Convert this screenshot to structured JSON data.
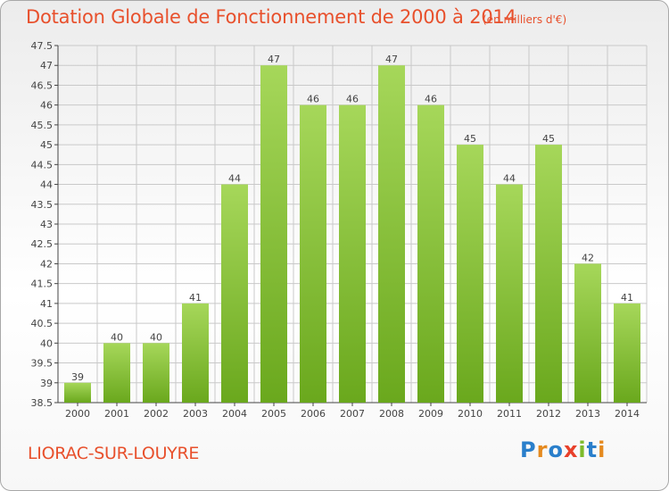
{
  "header": {
    "title": "Dotation Globale de Fonctionnement de 2000 à 2014",
    "unit": "(en milliers d'€)"
  },
  "footer": {
    "commune": "LIORAC-SUR-LOUYRE",
    "logo": "Proxiti"
  },
  "colors": {
    "title": "#e8502c",
    "bar_light": "#a6d75a",
    "bar_dark": "#6aa81d",
    "grid": "#c9c9c9"
  },
  "chart_data": {
    "type": "bar",
    "title": "Dotation Globale de Fonctionnement de 2000 à 2014",
    "xlabel": "",
    "ylabel": "(en milliers d'€)",
    "categories": [
      "2000",
      "2001",
      "2002",
      "2003",
      "2004",
      "2005",
      "2006",
      "2007",
      "2008",
      "2009",
      "2010",
      "2011",
      "2012",
      "2013",
      "2014"
    ],
    "values": [
      39,
      40,
      40,
      41,
      44,
      47,
      46,
      46,
      47,
      46,
      45,
      44,
      45,
      42,
      41
    ],
    "data_labels": [
      "39",
      "40",
      "40",
      "41",
      "44",
      "47",
      "46",
      "46",
      "47",
      "46",
      "45",
      "44",
      "45",
      "42",
      "41"
    ],
    "ylim": [
      38.5,
      47.5
    ],
    "yticks": [
      38.5,
      39,
      39.5,
      40,
      40.5,
      41,
      41.5,
      42,
      42.5,
      43,
      43.5,
      44,
      44.5,
      45,
      45.5,
      46,
      46.5,
      47,
      47.5
    ],
    "ytick_labels": [
      "38.5",
      "39",
      "39.5",
      "40",
      "40.5",
      "41",
      "41.5",
      "42",
      "42.5",
      "43",
      "43.5",
      "44",
      "44.5",
      "45",
      "45.5",
      "46",
      "46.5",
      "47",
      "47.5"
    ],
    "grid": true
  }
}
